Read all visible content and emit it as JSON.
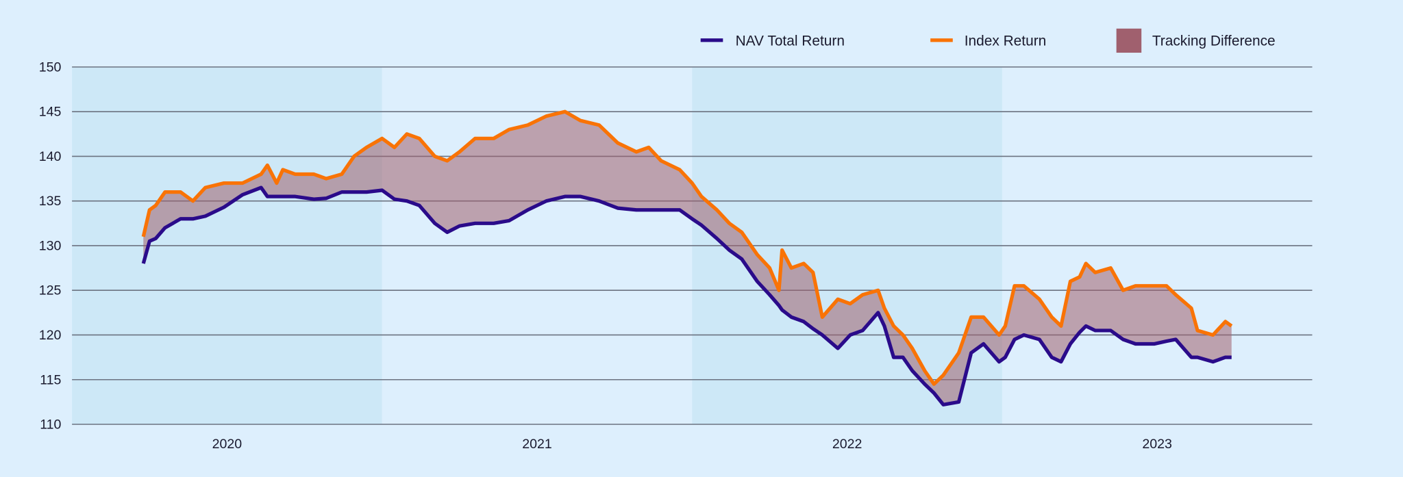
{
  "chart_data": {
    "type": "line",
    "title": "",
    "xlabel": "",
    "ylabel": "",
    "ylim": [
      110,
      150
    ],
    "yticks": [
      "110",
      "115",
      "120",
      "125",
      "130",
      "135",
      "140",
      "145",
      "150"
    ],
    "xlim": [
      2020,
      2024
    ],
    "xticks": [
      "2020",
      "2021",
      "2022",
      "2023"
    ],
    "grid": "horizontal",
    "legend_position": "top-right",
    "legend": [
      "NAV Total Return",
      "Index Return",
      "Tracking Difference"
    ],
    "colors": {
      "nav": "#2a0b8a",
      "index": "#f97306",
      "tracking": "#a0606e",
      "background": "#ddeffd",
      "band": "#cde8f7",
      "grid": "#6b7280"
    },
    "x": [
      2020.23,
      2020.25,
      2020.27,
      2020.3,
      2020.35,
      2020.39,
      2020.43,
      2020.49,
      2020.55,
      2020.61,
      2020.63,
      2020.66,
      2020.68,
      2020.72,
      2020.78,
      2020.82,
      2020.87,
      2020.91,
      2020.95,
      2021.0,
      2021.04,
      2021.08,
      2021.12,
      2021.17,
      2021.21,
      2021.25,
      2021.3,
      2021.36,
      2021.41,
      2021.47,
      2021.53,
      2021.59,
      2021.64,
      2021.7,
      2021.76,
      2021.82,
      2021.86,
      2021.9,
      2021.96,
      2022.0,
      2022.03,
      2022.08,
      2022.12,
      2022.16,
      2022.21,
      2022.25,
      2022.28,
      2022.29,
      2022.32,
      2022.36,
      2022.39,
      2022.42,
      2022.47,
      2022.51,
      2022.55,
      2022.6,
      2022.62,
      2022.65,
      2022.68,
      2022.71,
      2022.75,
      2022.78,
      2022.81,
      2022.86,
      2022.9,
      2022.94,
      2022.99,
      2023.01,
      2023.04,
      2023.07,
      2023.12,
      2023.16,
      2023.19,
      2023.22,
      2023.25,
      2023.27,
      2023.3,
      2023.35,
      2023.39,
      2023.43,
      2023.49,
      2023.53,
      2023.56,
      2023.61,
      2023.63,
      2023.68,
      2023.72,
      2023.74
    ],
    "series": [
      {
        "name": "NAV Total Return",
        "values": [
          128,
          130.5,
          130.8,
          132,
          133,
          133,
          133.3,
          134.3,
          135.7,
          136.5,
          135.5,
          135.5,
          135.5,
          135.5,
          135.2,
          135.3,
          136,
          136,
          136,
          136.2,
          135.2,
          135,
          134.5,
          132.5,
          131.5,
          132.2,
          132.5,
          132.5,
          132.8,
          134,
          135,
          135.5,
          135.5,
          135,
          134.2,
          134,
          134,
          134,
          134,
          133,
          132.3,
          130.8,
          129.5,
          128.5,
          126,
          124.5,
          123.3,
          122.8,
          122,
          121.5,
          120.7,
          120,
          118.5,
          120,
          120.5,
          122.5,
          121,
          117.5,
          117.5,
          116,
          114.5,
          113.5,
          112.2,
          112.5,
          118,
          119,
          117,
          117.5,
          119.5,
          120,
          119.5,
          117.5,
          117,
          119,
          120.3,
          121,
          120.5,
          120.5,
          119.5,
          119,
          119,
          119.3,
          119.5,
          117.5,
          117.5,
          117,
          117.5,
          117.5
        ]
      },
      {
        "name": "Index Return",
        "values": [
          131,
          134,
          134.5,
          136,
          136,
          135,
          136.5,
          137,
          137,
          138,
          139,
          137,
          138.5,
          138,
          138,
          137.5,
          138,
          140,
          141,
          142,
          141,
          142.5,
          142,
          140,
          139.5,
          140.5,
          142,
          142,
          143,
          143.5,
          144.5,
          145,
          144,
          143.5,
          141.5,
          140.5,
          141,
          139.5,
          138.5,
          137,
          135.5,
          134,
          132.5,
          131.5,
          129,
          127.5,
          125,
          129.5,
          127.5,
          128,
          127,
          122,
          124,
          123.5,
          124.5,
          125,
          123,
          121,
          120,
          118.5,
          116,
          114.5,
          115.5,
          118,
          122,
          122,
          120,
          121,
          125.5,
          125.5,
          124,
          122,
          121,
          126,
          126.5,
          128,
          127,
          127.5,
          125,
          125.5,
          125.5,
          125.5,
          124.5,
          123,
          120.5,
          120,
          121.5,
          121
        ]
      }
    ]
  }
}
